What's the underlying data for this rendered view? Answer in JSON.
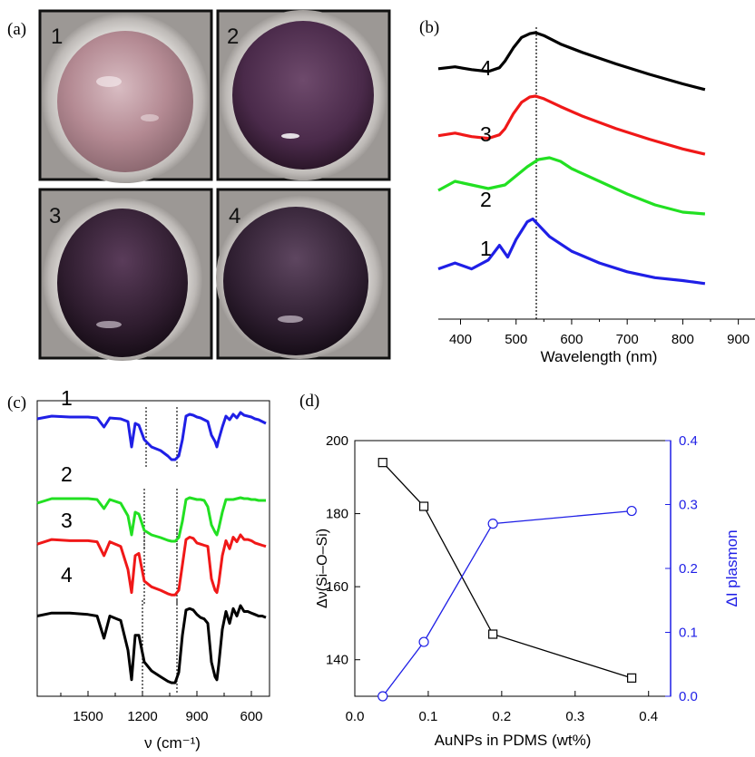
{
  "panels": {
    "a": {
      "label": "(a)",
      "photos": [
        {
          "number": "1",
          "color": "#b48a93"
        },
        {
          "number": "2",
          "color": "#4a2a4a"
        },
        {
          "number": "3",
          "color": "#2e1c2e"
        },
        {
          "number": "4",
          "color": "#2e1e30"
        }
      ]
    },
    "b": {
      "label": "(b)",
      "xlabel": "Wavelength (nm)",
      "xticks": [
        400,
        500,
        600,
        700,
        800,
        900
      ],
      "xlim": [
        360,
        930
      ],
      "marker_x": 532
    },
    "c": {
      "label": "(c)",
      "xlabel": "ν (cm⁻¹)",
      "xticks": [
        1500,
        1200,
        900,
        600
      ],
      "xlim": [
        1780,
        500
      ]
    },
    "d": {
      "label": "(d)",
      "xlabel": "AuNPs in PDMS (wt%)",
      "ylabel_left": "Δν(Si–O–Si)",
      "ylabel_right": "ΔI plasmon",
      "xticks": [
        "0.0",
        "0.1",
        "0.2",
        "0.3",
        "0.4"
      ],
      "yticks_left": [
        "140",
        "160",
        "180",
        "200"
      ],
      "yticks_right": [
        "0.0",
        "0.1",
        "0.2",
        "0.3",
        "0.4"
      ]
    }
  },
  "colors": {
    "1": "#1f1fe6",
    "2": "#22e022",
    "3": "#f01818",
    "4": "#000000",
    "right_axis": "#1f1fe6"
  },
  "chart_data": [
    {
      "panel": "b",
      "type": "line",
      "xlabel": "Wavelength (nm)",
      "ylabel": "",
      "xlim": [
        360,
        930
      ],
      "grid": false,
      "series": [
        {
          "name": "1",
          "x": [
            360,
            390,
            420,
            450,
            470,
            485,
            500,
            520,
            530,
            545,
            560,
            600,
            650,
            700,
            750,
            800,
            840
          ],
          "y": [
            0.06,
            0.08,
            0.06,
            0.09,
            0.14,
            0.1,
            0.16,
            0.22,
            0.23,
            0.2,
            0.17,
            0.12,
            0.08,
            0.05,
            0.03,
            0.02,
            0.01
          ]
        },
        {
          "name": "2",
          "x": [
            360,
            390,
            420,
            450,
            480,
            500,
            520,
            540,
            560,
            580,
            600,
            650,
            700,
            750,
            800,
            840
          ],
          "y": [
            0.3,
            0.35,
            0.33,
            0.31,
            0.33,
            0.38,
            0.43,
            0.47,
            0.48,
            0.46,
            0.42,
            0.35,
            0.28,
            0.22,
            0.18,
            0.17
          ]
        },
        {
          "name": "3",
          "x": [
            360,
            390,
            420,
            450,
            470,
            480,
            495,
            510,
            525,
            535,
            550,
            580,
            620,
            680,
            740,
            800,
            840
          ],
          "y": [
            0.6,
            0.63,
            0.59,
            0.57,
            0.61,
            0.68,
            0.85,
            0.98,
            1.04,
            1.05,
            1.02,
            0.93,
            0.82,
            0.68,
            0.56,
            0.45,
            0.39
          ]
        },
        {
          "name": "4",
          "x": [
            360,
            390,
            420,
            450,
            470,
            480,
            495,
            510,
            525,
            535,
            550,
            580,
            620,
            680,
            740,
            800,
            840
          ],
          "y": [
            1.12,
            1.14,
            1.11,
            1.09,
            1.13,
            1.2,
            1.34,
            1.45,
            1.49,
            1.5,
            1.47,
            1.38,
            1.29,
            1.17,
            1.06,
            0.96,
            0.9
          ]
        }
      ]
    },
    {
      "panel": "c",
      "type": "line",
      "xlabel": "ν (cm⁻¹)",
      "ylabel": "",
      "xlim": [
        1780,
        500
      ],
      "grid": false,
      "series": [
        {
          "name": "1",
          "x": [
            1780,
            1700,
            1600,
            1500,
            1450,
            1412,
            1380,
            1320,
            1280,
            1260,
            1240,
            1220,
            1190,
            1150,
            1100,
            1060,
            1040,
            1020,
            1000,
            980,
            960,
            940,
            920,
            900,
            880,
            860,
            840,
            820,
            800,
            790,
            780,
            760,
            740,
            720,
            700,
            680,
            660,
            640,
            620,
            600,
            580,
            560,
            540,
            520
          ],
          "y": [
            0.93,
            0.96,
            0.95,
            0.95,
            0.94,
            0.84,
            0.94,
            0.93,
            0.9,
            0.62,
            0.88,
            0.86,
            0.7,
            0.62,
            0.58,
            0.52,
            0.48,
            0.48,
            0.52,
            0.7,
            0.96,
            0.98,
            0.97,
            0.95,
            0.94,
            0.92,
            0.9,
            0.75,
            0.68,
            0.62,
            0.7,
            0.84,
            0.96,
            0.92,
            0.98,
            0.94,
            1.0,
            0.97,
            0.96,
            0.95,
            0.93,
            0.92,
            0.9,
            0.88
          ]
        },
        {
          "name": "2",
          "x": [
            1780,
            1700,
            1600,
            1500,
            1450,
            1412,
            1380,
            1320,
            1280,
            1260,
            1240,
            1220,
            1190,
            1150,
            1100,
            1060,
            1040,
            1020,
            1000,
            980,
            960,
            940,
            920,
            900,
            880,
            860,
            840,
            820,
            800,
            790,
            780,
            760,
            740,
            720,
            700,
            680,
            660,
            640,
            620,
            600,
            580,
            560,
            540,
            520
          ],
          "y": [
            0.9,
            0.95,
            0.95,
            0.95,
            0.94,
            0.84,
            0.94,
            0.9,
            0.76,
            0.55,
            0.8,
            0.78,
            0.6,
            0.55,
            0.52,
            0.49,
            0.48,
            0.48,
            0.52,
            0.7,
            0.94,
            0.96,
            0.95,
            0.94,
            0.94,
            0.93,
            0.86,
            0.66,
            0.58,
            0.55,
            0.62,
            0.8,
            0.94,
            0.94,
            0.94,
            0.95,
            0.96,
            0.95,
            0.95,
            0.94,
            0.94,
            0.93,
            0.93,
            0.93
          ]
        },
        {
          "name": "3",
          "x": [
            1780,
            1700,
            1600,
            1500,
            1450,
            1412,
            1380,
            1320,
            1280,
            1260,
            1240,
            1220,
            1190,
            1150,
            1100,
            1060,
            1040,
            1020,
            1000,
            980,
            960,
            940,
            920,
            900,
            880,
            860,
            840,
            820,
            800,
            790,
            780,
            760,
            740,
            720,
            700,
            680,
            660,
            640,
            620,
            600,
            580,
            560,
            540,
            520
          ],
          "y": [
            0.92,
            0.96,
            0.95,
            0.95,
            0.94,
            0.82,
            0.94,
            0.9,
            0.7,
            0.5,
            0.82,
            0.84,
            0.6,
            0.55,
            0.52,
            0.49,
            0.48,
            0.48,
            0.52,
            0.74,
            0.96,
            0.98,
            0.97,
            0.93,
            0.92,
            0.91,
            0.9,
            0.62,
            0.52,
            0.5,
            0.58,
            0.82,
            0.95,
            0.88,
            0.98,
            0.94,
            1.0,
            0.96,
            0.96,
            0.95,
            0.93,
            0.92,
            0.91,
            0.9
          ]
        },
        {
          "name": "4",
          "x": [
            1780,
            1700,
            1600,
            1500,
            1450,
            1412,
            1380,
            1320,
            1280,
            1260,
            1240,
            1220,
            1190,
            1150,
            1100,
            1060,
            1040,
            1020,
            1000,
            980,
            960,
            940,
            920,
            900,
            880,
            860,
            840,
            820,
            800,
            790,
            780,
            760,
            740,
            720,
            700,
            680,
            660,
            640,
            620,
            600,
            580,
            560,
            540,
            520
          ],
          "y": [
            0.93,
            0.95,
            0.95,
            0.94,
            0.93,
            0.78,
            0.93,
            0.9,
            0.7,
            0.5,
            0.8,
            0.8,
            0.62,
            0.56,
            0.52,
            0.49,
            0.48,
            0.48,
            0.55,
            0.8,
            0.97,
            0.98,
            0.97,
            0.94,
            0.92,
            0.91,
            0.88,
            0.62,
            0.52,
            0.5,
            0.6,
            0.84,
            0.96,
            0.88,
            0.98,
            0.93,
            1.0,
            0.96,
            0.96,
            0.95,
            0.94,
            0.93,
            0.93,
            0.92
          ]
        }
      ],
      "markers_x": {
        "1": [
          1180,
          1010
        ],
        "2": [
          1190,
          1010
        ],
        "3": [
          1190,
          1010
        ],
        "4": [
          1200,
          1010
        ]
      }
    },
    {
      "panel": "d",
      "type": "line",
      "xlabel": "AuNPs in PDMS (wt%)",
      "ylabel": "Δν(Si–O–Si)",
      "ylabel_right": "ΔI plasmon",
      "xlim": [
        0.0,
        0.43
      ],
      "ylim": [
        130,
        200
      ],
      "ylim_right": [
        0.0,
        0.4
      ],
      "grid": false,
      "series": [
        {
          "name": "Δν(Si–O–Si)",
          "axis": "left",
          "marker": "square",
          "x": [
            0.038,
            0.094,
            0.188,
            0.377
          ],
          "values": [
            194,
            182,
            147,
            135
          ]
        },
        {
          "name": "ΔI plasmon",
          "axis": "right",
          "marker": "circle",
          "x": [
            0.038,
            0.094,
            0.188,
            0.377
          ],
          "values": [
            0.0,
            0.085,
            0.27,
            0.29
          ]
        }
      ]
    }
  ]
}
